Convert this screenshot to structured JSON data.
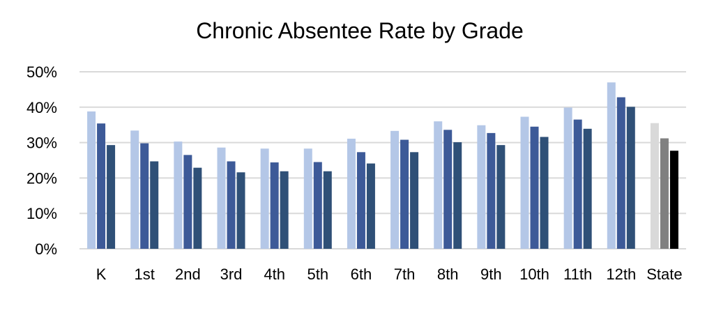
{
  "chart_data": {
    "type": "bar",
    "title": "Chronic Absentee Rate by Grade",
    "xlabel": "",
    "ylabel": "",
    "ylim": [
      0,
      50
    ],
    "yticks": [
      "0%",
      "10%",
      "20%",
      "30%",
      "40%",
      "50%"
    ],
    "grid": true,
    "legend": "none",
    "categories": [
      "K",
      "1st",
      "2nd",
      "3rd",
      "4th",
      "5th",
      "6th",
      "7th",
      "8th",
      "9th",
      "10th",
      "11th",
      "12th",
      "State"
    ],
    "series": [
      {
        "values": [
          38.8,
          33.4,
          30.3,
          28.6,
          28.3,
          28.3,
          31.1,
          33.3,
          36.0,
          34.9,
          37.3,
          39.9,
          47.0,
          35.5
        ],
        "colors": [
          "#b4c7e7",
          "#b4c7e7",
          "#b4c7e7",
          "#b4c7e7",
          "#b4c7e7",
          "#b4c7e7",
          "#b4c7e7",
          "#b4c7e7",
          "#b4c7e7",
          "#b4c7e7",
          "#b4c7e7",
          "#b4c7e7",
          "#b4c7e7",
          "#d9d9d9"
        ]
      },
      {
        "values": [
          35.4,
          29.8,
          26.5,
          24.7,
          24.4,
          24.5,
          27.3,
          30.8,
          33.6,
          32.7,
          34.5,
          36.5,
          42.8,
          31.2
        ],
        "colors": [
          "#3d5a98",
          "#3d5a98",
          "#3d5a98",
          "#3d5a98",
          "#3d5a98",
          "#3d5a98",
          "#3d5a98",
          "#3d5a98",
          "#3d5a98",
          "#3d5a98",
          "#3d5a98",
          "#3d5a98",
          "#3d5a98",
          "#808080"
        ]
      },
      {
        "values": [
          29.3,
          24.7,
          22.9,
          21.6,
          21.9,
          21.9,
          24.1,
          27.3,
          30.1,
          29.3,
          31.6,
          33.9,
          40.1,
          27.7
        ],
        "colors": [
          "#2f5077",
          "#2f5077",
          "#2f5077",
          "#2f5077",
          "#2f5077",
          "#2f5077",
          "#2f5077",
          "#2f5077",
          "#2f5077",
          "#2f5077",
          "#2f5077",
          "#2f5077",
          "#2f5077",
          "#000000"
        ]
      }
    ]
  }
}
